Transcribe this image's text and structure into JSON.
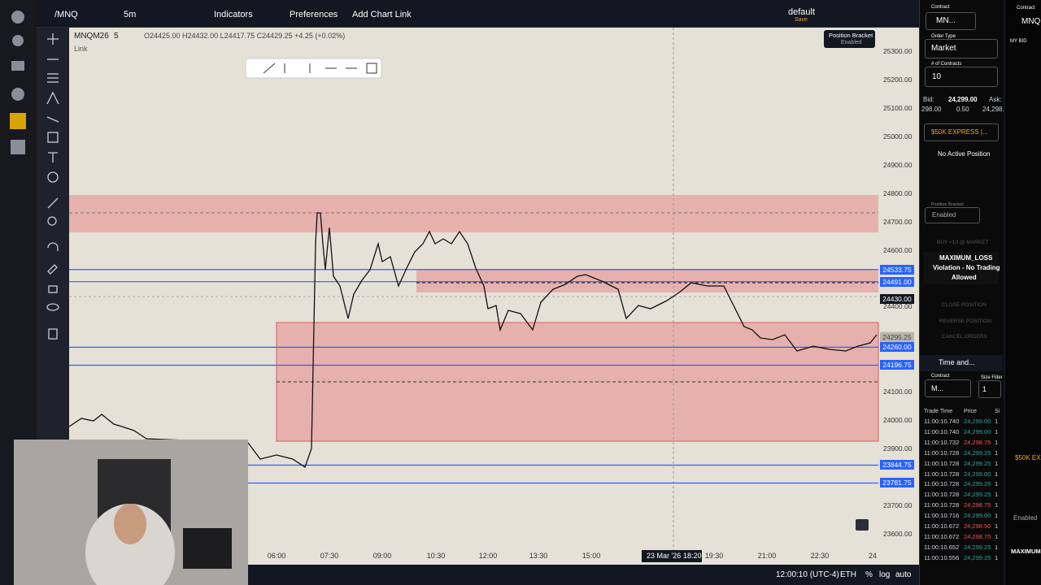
{
  "toolbar": {
    "symbol": "/MNQ",
    "interval": "5m",
    "indicators": "Indicators",
    "preferences": "Preferences",
    "add_chart_link": "Add Chart Link",
    "layout": "default",
    "layout_status": "Save"
  },
  "chart": {
    "symbol": "MNQM26",
    "interval": "5",
    "ohlc": "O24425.00 H24432.00 L24417.75 C24429.25 +4.25 (+0.02%)",
    "link": "Link",
    "tooltip": [
      "Position Bracket",
      "Enabled"
    ],
    "price_axis": [
      "25300.00",
      "25200.00",
      "25100.00",
      "25000.00",
      "24900.00",
      "24800.00",
      "24700.00",
      "24600.00",
      "24400.00",
      "24100.00",
      "24000.00",
      "23900.00",
      "23700.00",
      "23600.00"
    ],
    "price_tags": [
      {
        "label": "24533.75",
        "color": "#2962ff"
      },
      {
        "label": "24491.00",
        "color": "#2962ff"
      },
      {
        "label": "24430.00",
        "color": "#131722"
      },
      {
        "label": "24299.00",
        "color": "#d9d4c8"
      },
      {
        "label": "24295.25",
        "color": "#b8b4aa"
      },
      {
        "label": "24260.00",
        "color": "#2962ff"
      },
      {
        "label": "24196.75",
        "color": "#2962ff"
      },
      {
        "label": "23844.75",
        "color": "#2962ff"
      },
      {
        "label": "23781.75",
        "color": "#2962ff"
      }
    ],
    "time_axis": [
      "06:00",
      "07:30",
      "09:00",
      "10:30",
      "12:00",
      "13:30",
      "15:00",
      "19:30",
      "21:00",
      "22:30",
      "24"
    ],
    "crosshair": {
      "date": "23 Mar '26",
      "time": "18:20"
    }
  },
  "status_bar": {
    "clock": "12:00:10 (UTC-4)",
    "session": "ETH",
    "percent": "%",
    "log": "log",
    "auto": "auto"
  },
  "order_panel": {
    "contract_label": "Contract",
    "contract": "MN...",
    "order_type_label": "Order Type",
    "order_type": "Market",
    "contracts_label": "# of Contracts",
    "contracts": "10",
    "bid_label": "Bid:",
    "bid": "298.00",
    "last": "24,299.00",
    "spread": "0.50",
    "ask_label": "Ask:",
    "ask": "24,298.",
    "account": "$50K EXPRESS |...",
    "position": "No Active Position",
    "bracket_label": "Position Bracket",
    "bracket": "Enabled",
    "buy": "BUY +10 @ MARKET",
    "violation": [
      "MAXIMUM_LOSS",
      "Violation - No Trading",
      "Allowed"
    ],
    "close": "CLOSE POSITION",
    "reverse": "REVERSE POSITION",
    "cancel": "CANCEL ORDERS"
  },
  "time_and_sales": {
    "title": "Time and...",
    "contract_label": "Contract",
    "contract": "M...",
    "size_filter_label": "Size Filter",
    "size_filter": "1",
    "headers": [
      "Trade Time",
      "Price",
      "Si"
    ],
    "rows": [
      {
        "time": "11:00:10.740",
        "price": "24,299.00",
        "size": "1",
        "color": "#26a69a"
      },
      {
        "time": "11:00:10.740",
        "price": "24,299.00",
        "size": "1",
        "color": "#26a69a"
      },
      {
        "time": "11:00:10.732",
        "price": "24,298.75",
        "size": "1",
        "color": "#ef5350"
      },
      {
        "time": "11:00:10.728",
        "price": "24,299.25",
        "size": "1",
        "color": "#26a69a"
      },
      {
        "time": "11:00:10.728",
        "price": "24,299.25",
        "size": "1",
        "color": "#26a69a"
      },
      {
        "time": "11:00:10.728",
        "price": "24,299.00",
        "size": "1",
        "color": "#26a69a"
      },
      {
        "time": "11:00:10.728",
        "price": "24,299.25",
        "size": "1",
        "color": "#26a69a"
      },
      {
        "time": "11:00:10.728",
        "price": "24,299.25",
        "size": "1",
        "color": "#26a69a"
      },
      {
        "time": "11:00:10.728",
        "price": "24,298.75",
        "size": "1",
        "color": "#ef5350"
      },
      {
        "time": "11:00:10.716",
        "price": "24,299.00",
        "size": "1",
        "color": "#26a69a"
      },
      {
        "time": "11:00:10.672",
        "price": "24,298.50",
        "size": "1",
        "color": "#ef5350"
      },
      {
        "time": "11:00:10.672",
        "price": "24,298.75",
        "size": "1",
        "color": "#ef5350"
      },
      {
        "time": "11:00:10.652",
        "price": "24,299.25",
        "size": "1",
        "color": "#26a69a"
      },
      {
        "time": "11:00:10.556",
        "price": "24,299.25",
        "size": "1",
        "color": "#26a69a"
      }
    ]
  },
  "side_panel": {
    "contract_label": "Contract",
    "contract": "MNQ",
    "my_bid": "MY BID",
    "account": "$50K EXP",
    "bracket": "Enabled",
    "violation": "MAXIMUM"
  }
}
